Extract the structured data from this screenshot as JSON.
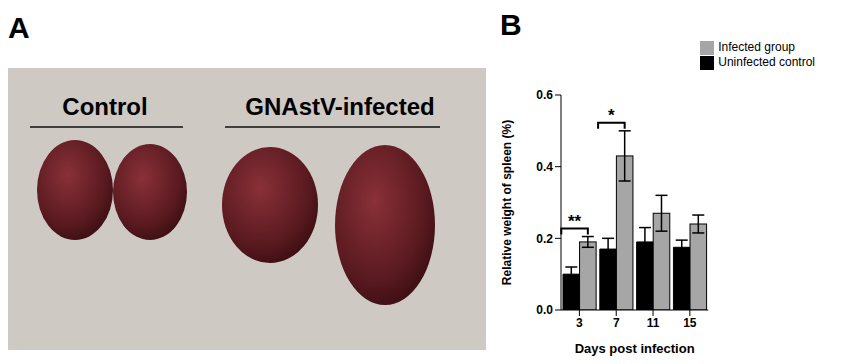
{
  "panel_a": {
    "label": "A",
    "groups": [
      "Control",
      "GNAstV-infected"
    ]
  },
  "chart_data": {
    "type": "bar",
    "panel_label": "B",
    "x_label": "Days post infection",
    "y_label": "Relative weight of spleen (%)",
    "categories": [
      "3",
      "7",
      "11",
      "15"
    ],
    "series": [
      {
        "name": "Uninfected control",
        "color": "#000000",
        "values": [
          0.1,
          0.17,
          0.19,
          0.175
        ],
        "errors": [
          0.02,
          0.03,
          0.04,
          0.02
        ]
      },
      {
        "name": "Infected group",
        "color": "#a6a6a6",
        "values": [
          0.19,
          0.43,
          0.27,
          0.24
        ],
        "errors": [
          0.015,
          0.07,
          0.05,
          0.025
        ]
      }
    ],
    "annotations": [
      {
        "category": "3",
        "text": "**"
      },
      {
        "category": "7",
        "text": "*"
      }
    ],
    "ylim": [
      0,
      0.6
    ],
    "yticks": [
      {
        "value": 0,
        "label": "0.0"
      },
      0.2,
      0.4,
      0.6
    ],
    "grid": false,
    "legend": "upper right"
  }
}
